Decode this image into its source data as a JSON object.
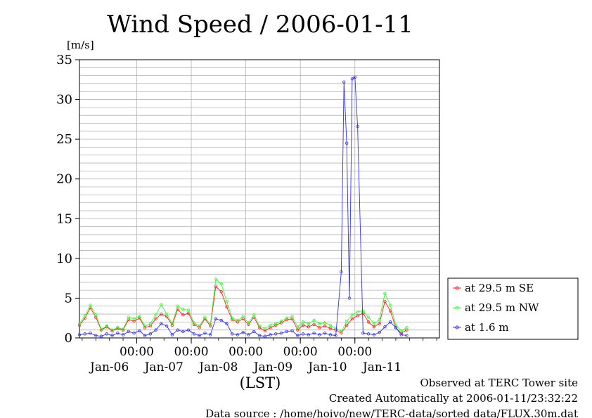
{
  "chart_data": {
    "type": "line",
    "title": "Wind Speed / 2006-01-11",
    "ylabel": "[m/s]",
    "xlabel": "(LST)",
    "ylim": [
      0,
      35
    ],
    "xlim": [
      0,
      132
    ],
    "yticks": [
      0,
      5,
      10,
      15,
      20,
      25,
      30,
      35
    ],
    "grid": true,
    "legend_position": "right",
    "x_time_ticks": [
      {
        "x": 21,
        "label": "00:00"
      },
      {
        "x": 41,
        "label": "00:00"
      },
      {
        "x": 61,
        "label": "00:00"
      },
      {
        "x": 81,
        "label": "00:00"
      },
      {
        "x": 101,
        "label": "00:00"
      }
    ],
    "x_date_ticks": [
      {
        "x": 11,
        "label": "Jan-06"
      },
      {
        "x": 31,
        "label": "Jan-07"
      },
      {
        "x": 51,
        "label": "Jan-08"
      },
      {
        "x": 71,
        "label": "Jan-09"
      },
      {
        "x": 91,
        "label": "Jan-10"
      },
      {
        "x": 111,
        "label": "Jan-11"
      }
    ],
    "series": [
      {
        "name": "at 29.5 m SE",
        "color": "#ff2020",
        "x": [
          0,
          2,
          4,
          6,
          8,
          10,
          12,
          14,
          16,
          18,
          20,
          22,
          24,
          26,
          28,
          30,
          32,
          34,
          36,
          38,
          40,
          42,
          44,
          46,
          48,
          50,
          52,
          54,
          56,
          58,
          60,
          62,
          64,
          66,
          68,
          70,
          72,
          74,
          76,
          78,
          80,
          82,
          84,
          86,
          88,
          90,
          92,
          94,
          96,
          98,
          100,
          102,
          104,
          106,
          108,
          110,
          112,
          114,
          116,
          118,
          120
        ],
        "values": [
          1.6,
          2.5,
          3.8,
          2.6,
          1.0,
          1.4,
          0.9,
          1.2,
          1.0,
          2.3,
          2.1,
          2.5,
          1.3,
          1.5,
          2.4,
          3.0,
          2.7,
          1.6,
          3.6,
          2.9,
          3.1,
          1.7,
          1.3,
          2.4,
          1.5,
          6.5,
          5.8,
          3.9,
          2.3,
          2.0,
          2.4,
          1.7,
          2.6,
          1.3,
          0.9,
          1.3,
          1.6,
          1.9,
          2.3,
          2.4,
          1.0,
          1.6,
          1.4,
          1.7,
          1.3,
          1.5,
          1.2,
          1.0,
          0.6,
          1.6,
          2.4,
          2.8,
          3.1,
          2.0,
          1.4,
          1.8,
          4.6,
          3.4,
          1.3,
          0.6,
          1.0
        ]
      },
      {
        "name": "at 29.5 m NW",
        "color": "#30ff30",
        "x": [
          0,
          2,
          4,
          6,
          8,
          10,
          12,
          14,
          16,
          18,
          20,
          22,
          24,
          26,
          28,
          30,
          32,
          34,
          36,
          38,
          40,
          42,
          44,
          46,
          48,
          50,
          52,
          54,
          56,
          58,
          60,
          62,
          64,
          66,
          68,
          70,
          72,
          74,
          76,
          78,
          80,
          82,
          84,
          86,
          88,
          90,
          92,
          94,
          96,
          98,
          100,
          102,
          104,
          106,
          108,
          110,
          112,
          114,
          116,
          118,
          120
        ],
        "values": [
          1.8,
          2.8,
          4.1,
          2.9,
          1.1,
          1.5,
          1.0,
          1.3,
          1.1,
          2.6,
          2.4,
          2.7,
          1.5,
          1.8,
          2.9,
          4.2,
          3.0,
          1.8,
          4.0,
          3.6,
          3.5,
          1.9,
          1.5,
          2.6,
          1.7,
          7.4,
          6.8,
          4.6,
          2.5,
          2.2,
          2.7,
          1.9,
          2.9,
          1.5,
          1.2,
          1.6,
          1.8,
          2.1,
          2.5,
          2.7,
          1.4,
          2.0,
          1.8,
          2.2,
          1.8,
          1.9,
          1.6,
          1.2,
          0.8,
          2.1,
          2.9,
          3.3,
          3.4,
          2.6,
          1.8,
          2.3,
          5.6,
          4.1,
          1.6,
          0.9,
          1.3
        ]
      },
      {
        "name": "at 1.6 m",
        "color": "#3030ff",
        "x": [
          0,
          2,
          4,
          6,
          8,
          10,
          12,
          14,
          16,
          18,
          20,
          22,
          24,
          26,
          28,
          30,
          32,
          34,
          36,
          38,
          40,
          42,
          44,
          46,
          48,
          50,
          52,
          54,
          56,
          58,
          60,
          62,
          64,
          66,
          68,
          70,
          72,
          74,
          76,
          78,
          80,
          82,
          84,
          86,
          88,
          90,
          92,
          94,
          96,
          97,
          98,
          99,
          100,
          101,
          102,
          104,
          106,
          108,
          110,
          112,
          114,
          116,
          118,
          120
        ],
        "values": [
          0.4,
          0.5,
          0.6,
          0.3,
          0.2,
          0.5,
          0.3,
          0.6,
          0.4,
          0.8,
          0.6,
          0.9,
          0.3,
          0.5,
          1.0,
          1.8,
          1.5,
          0.4,
          1.0,
          0.8,
          1.0,
          0.5,
          0.3,
          0.6,
          0.4,
          2.4,
          2.2,
          1.8,
          0.5,
          0.4,
          0.7,
          0.4,
          0.8,
          0.3,
          0.2,
          0.4,
          0.5,
          0.6,
          0.8,
          0.9,
          0.3,
          0.5,
          0.4,
          0.6,
          0.4,
          0.6,
          0.4,
          0.3,
          8.3,
          32.2,
          24.5,
          5.0,
          32.6,
          32.8,
          26.6,
          0.6,
          0.5,
          0.4,
          0.7,
          1.4,
          2.0,
          1.3,
          0.4,
          0.3
        ]
      }
    ]
  },
  "footer": {
    "line1": "Observed at TERC Tower site",
    "line2": "Created Automatically at 2006-01-11/23:32:22",
    "line3": "Data source : /home/hoivo/new/TERC-data/sorted  data/FLUX.30m.dat"
  }
}
